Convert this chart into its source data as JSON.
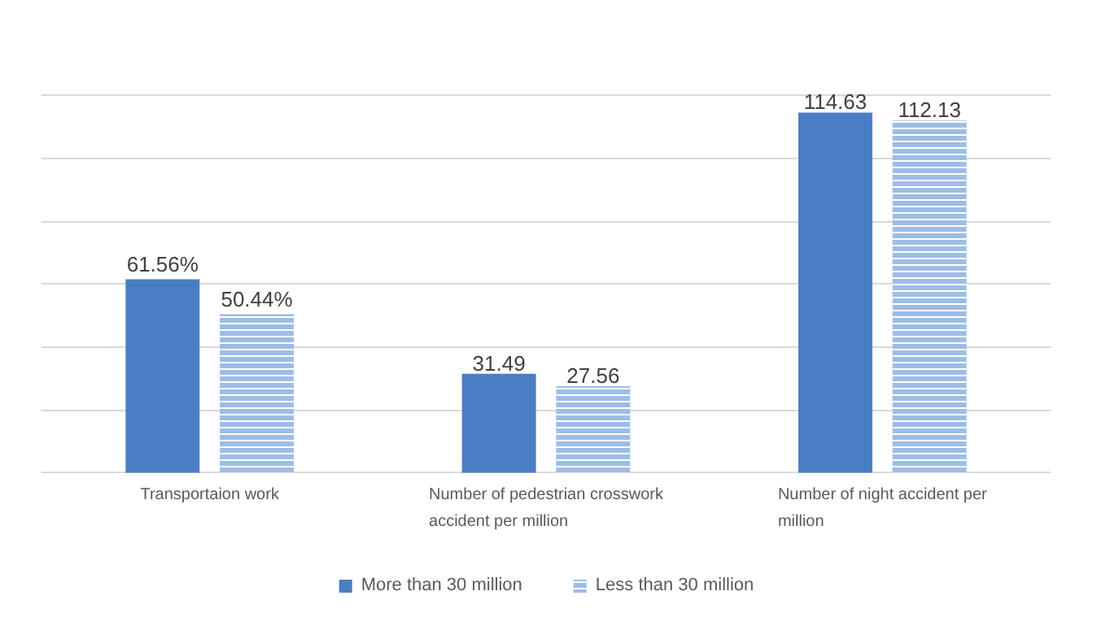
{
  "chart_data": {
    "type": "bar",
    "categories": [
      "Transportaion work",
      "Number of pedestrian crosswork accident per million",
      "Number of night accident per million"
    ],
    "series": [
      {
        "name": "More than 30 million",
        "color": "#4a7ec4",
        "values": [
          61.56,
          31.49,
          114.63
        ],
        "value_labels": [
          "61.56%",
          "31.49",
          "114.63"
        ]
      },
      {
        "name": "Less than 30 million",
        "color": "#9dbde6",
        "values": [
          50.44,
          27.56,
          112.13
        ],
        "value_labels": [
          "50.44%",
          "27.56",
          "112.13"
        ]
      }
    ],
    "tick_labels": "x",
    "grid": "y",
    "legend": "bottom"
  }
}
